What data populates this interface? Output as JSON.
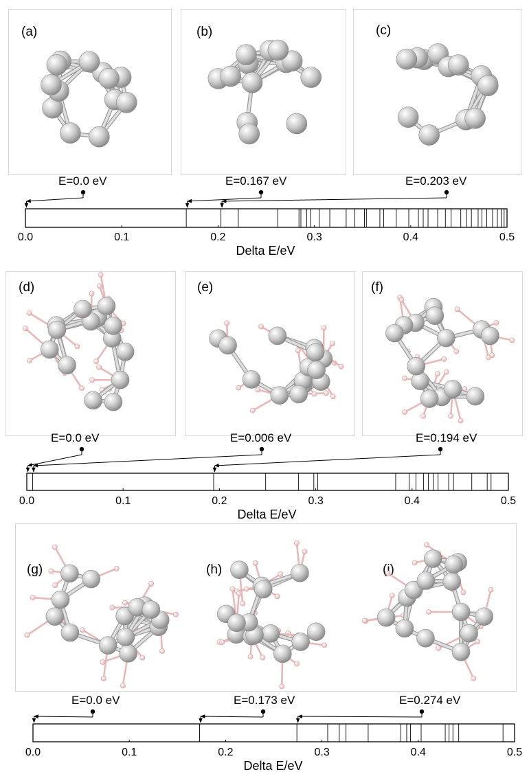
{
  "figure": {
    "rows": [
      {
        "panels": [
          {
            "label": "(a)",
            "energy": "E=0.0 eV",
            "value": 0.0
          },
          {
            "label": "(b)",
            "energy": "E=0.167 eV",
            "value": 0.167
          },
          {
            "label": "(c)",
            "energy": "E=0.203 eV",
            "value": 0.203
          }
        ],
        "has_ligands": false,
        "axis": {
          "xlabel": "Delta E/eV",
          "xlim": [
            0,
            0.5
          ],
          "ticks": [
            "0.0",
            "0.1",
            "0.2",
            "0.3",
            "0.4",
            "0.5"
          ],
          "levels": [
            0.0,
            0.167,
            0.203,
            0.221,
            0.262,
            0.284,
            0.286,
            0.292,
            0.296,
            0.305,
            0.316,
            0.333,
            0.342,
            0.352,
            0.354,
            0.368,
            0.372,
            0.385,
            0.398,
            0.408,
            0.413,
            0.418,
            0.428,
            0.436,
            0.442,
            0.452,
            0.458,
            0.463,
            0.47,
            0.474,
            0.479,
            0.485,
            0.49,
            0.494,
            0.497
          ]
        }
      },
      {
        "panels": [
          {
            "label": "(d)",
            "energy": "E=0.0 eV",
            "value": 0.0
          },
          {
            "label": "(e)",
            "energy": "E=0.006 eV",
            "value": 0.006
          },
          {
            "label": "(f)",
            "energy": "E=0.194 eV",
            "value": 0.194
          }
        ],
        "has_ligands": true,
        "axis": {
          "xlabel": "Delta E/eV",
          "xlim": [
            0,
            0.5
          ],
          "ticks": [
            "0.0",
            "0.1",
            "0.2",
            "0.3",
            "0.4",
            "0.5"
          ],
          "levels": [
            0.0,
            0.006,
            0.194,
            0.248,
            0.282,
            0.298,
            0.302,
            0.383,
            0.397,
            0.404,
            0.412,
            0.417,
            0.422,
            0.427,
            0.438,
            0.443,
            0.462,
            0.478,
            0.482
          ]
        }
      },
      {
        "panels": [
          {
            "label": "(g)",
            "energy": "E=0.0 eV",
            "value": 0.0
          },
          {
            "label": "(h)",
            "energy": "E=0.173 eV",
            "value": 0.173
          },
          {
            "label": "(i)",
            "energy": "E=0.274 eV",
            "value": 0.274
          }
        ],
        "has_ligands": true,
        "axis": {
          "xlabel": "Delta E/eV",
          "xlim": [
            0,
            0.5
          ],
          "ticks": [
            "0.0",
            "0.1",
            "0.2",
            "0.3",
            "0.4",
            "0.5"
          ],
          "levels": [
            0.0,
            0.173,
            0.274,
            0.306,
            0.318,
            0.325,
            0.348,
            0.382,
            0.388,
            0.392,
            0.403,
            0.428,
            0.432,
            0.436,
            0.442,
            0.488
          ]
        }
      }
    ]
  },
  "colors": {
    "atom": "#c9c9c9",
    "atom_highlight": "#ffffff",
    "atom_shadow": "#8a8a8a",
    "bond": "#bdbdbd",
    "ligand": "#e8b7b7",
    "ligand_atom": "#f4c9c9",
    "line": "#000000",
    "panel_border": "#d6d6d6"
  }
}
